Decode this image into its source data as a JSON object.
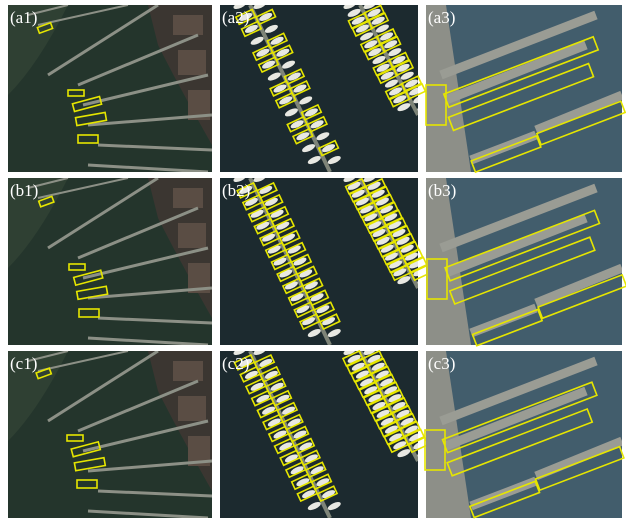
{
  "panels": [
    [
      "(a1)",
      "(a2)",
      "(a3)"
    ],
    [
      "(b1)",
      "(b2)",
      "(b3)"
    ],
    [
      "(c1)",
      "(c2)",
      "(c3)"
    ]
  ]
}
